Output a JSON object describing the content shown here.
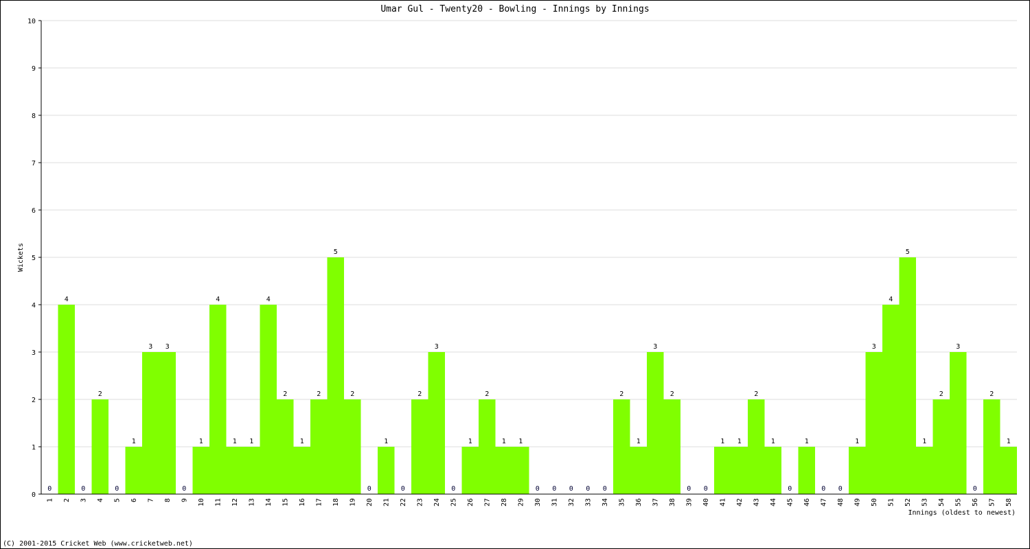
{
  "chart_data": {
    "type": "bar",
    "title": "Umar Gul - Twenty20 - Bowling - Innings by Innings",
    "x_label": "Innings (oldest to newest)",
    "y_label": "Wickets",
    "footer": "(C) 2001-2015 Cricket Web (www.cricketweb.net)",
    "categories": [
      "1",
      "2",
      "3",
      "4",
      "5",
      "6",
      "7",
      "8",
      "9",
      "10",
      "11",
      "12",
      "13",
      "14",
      "15",
      "16",
      "17",
      "18",
      "19",
      "20",
      "21",
      "22",
      "23",
      "24",
      "25",
      "26",
      "27",
      "28",
      "29",
      "30",
      "31",
      "32",
      "33",
      "34",
      "35",
      "36",
      "37",
      "38",
      "39",
      "40",
      "41",
      "42",
      "43",
      "44",
      "45",
      "46",
      "47",
      "48",
      "49",
      "50",
      "51",
      "52",
      "53",
      "54",
      "55",
      "56",
      "57",
      "58"
    ],
    "values": [
      0,
      4,
      0,
      2,
      0,
      1,
      3,
      3,
      0,
      1,
      4,
      1,
      1,
      4,
      2,
      1,
      2,
      5,
      2,
      0,
      1,
      0,
      2,
      3,
      0,
      1,
      2,
      1,
      1,
      0,
      0,
      0,
      0,
      0,
      2,
      1,
      3,
      2,
      0,
      0,
      1,
      1,
      2,
      1,
      0,
      1,
      0,
      0,
      1,
      3,
      4,
      5,
      1,
      2,
      3,
      0,
      2,
      1
    ],
    "color": "#80ff00",
    "ylim": [
      0,
      10
    ],
    "yticks": [
      0,
      1,
      2,
      3,
      4,
      5,
      6,
      7,
      8,
      9,
      10
    ],
    "grid": true
  }
}
